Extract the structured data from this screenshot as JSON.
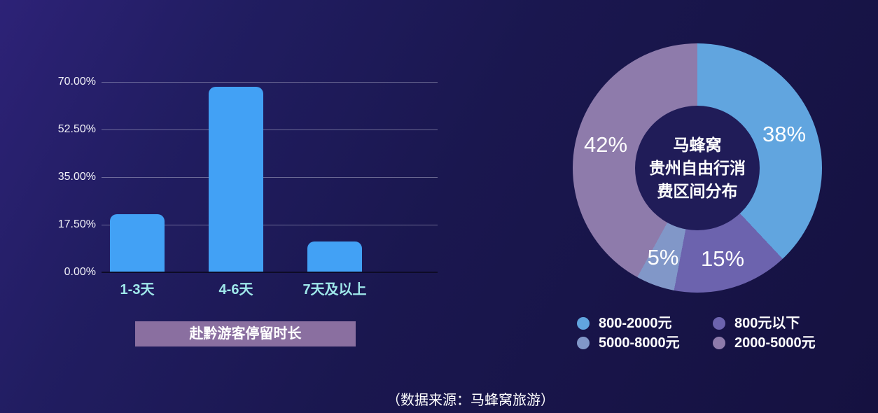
{
  "source_note": "（数据来源：马蜂窝旅游）",
  "bar_chart": {
    "badge_label": "赴黔游客停留时长",
    "y_ticks": [
      "70.00%",
      "52.50%",
      "35.00%",
      "17.50%",
      "0.00%"
    ],
    "x_labels": [
      "1-3天",
      "4-6天",
      "7天及以上"
    ],
    "values": [
      21,
      68,
      11
    ],
    "ymax": 70,
    "bar_color": "#42a1f5",
    "x_label_color": "#9fe8ea"
  },
  "donut_chart": {
    "center_title": [
      "马蜂窝",
      "贵州自由行消",
      "费区间分布"
    ],
    "slices": [
      {
        "label": "800-2000元",
        "pct_label": "38%",
        "value": 38,
        "color": "#61a5df"
      },
      {
        "label": "800元以下",
        "pct_label": "15%",
        "value": 15,
        "color": "#6c63ae"
      },
      {
        "label": "5000-8000元",
        "pct_label": "5%",
        "value": 5,
        "color": "#8197c8"
      },
      {
        "label": "2000-5000元",
        "pct_label": "42%",
        "value": 42,
        "color": "#8e7bab"
      }
    ]
  },
  "chart_data": [
    {
      "type": "bar",
      "title": "赴黔游客停留时长",
      "categories": [
        "1-3天",
        "4-6天",
        "7天及以上"
      ],
      "values": [
        21,
        68,
        11
      ],
      "unit": "%",
      "ylabel": "",
      "xlabel": "",
      "ylim": [
        0,
        70
      ],
      "yticks": [
        "0.00%",
        "17.50%",
        "35.00%",
        "52.50%",
        "70.00%"
      ],
      "grid": true,
      "bar_color": "#42a1f5"
    },
    {
      "type": "pie",
      "subtype": "donut",
      "title": "马蜂窝贵州自由行消费区间分布",
      "labels": [
        "800-2000元",
        "800元以下",
        "5000-8000元",
        "2000-5000元"
      ],
      "values": [
        38,
        15,
        5,
        42
      ],
      "unit": "%",
      "colors": [
        "#61a5df",
        "#6c63ae",
        "#8197c8",
        "#8e7bab"
      ],
      "start_angle_deg": 0,
      "direction": "clockwise",
      "legend_position": "bottom",
      "center_text": "马蜂窝贵州自由行消费区间分布",
      "annotation_note": "（数据来源：马蜂窝旅游）"
    }
  ]
}
